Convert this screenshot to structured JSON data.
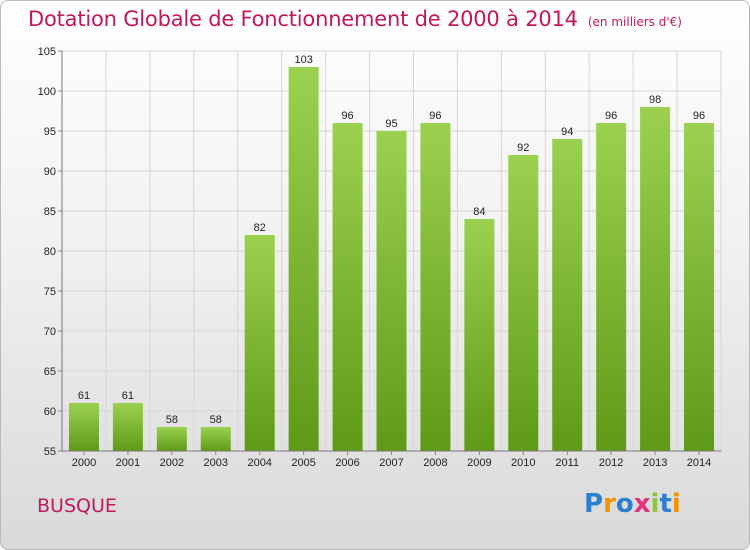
{
  "header": {
    "title": "Dotation Globale de Fonctionnement de 2000 à 2014",
    "unit": "(en milliers d'€)"
  },
  "footer": {
    "commune": "BUSQUE",
    "logo": "Proxiti",
    "logo_letters": [
      "P",
      "r",
      "o",
      "x",
      "i",
      "t",
      "i"
    ],
    "logo_colors": [
      "#2a7fd0",
      "#f39200",
      "#2a7fd0",
      "#e4327e",
      "#8cc63f",
      "#2a7fd0",
      "#f39200"
    ]
  },
  "colors": {
    "bar_top": "#9bd14f",
    "bar_bottom": "#5f9a17",
    "title": "#c2185b",
    "grid": "#d6d6d6"
  },
  "chart_data": {
    "type": "bar",
    "categories": [
      "2000",
      "2001",
      "2002",
      "2003",
      "2004",
      "2005",
      "2006",
      "2007",
      "2008",
      "2009",
      "2010",
      "2011",
      "2012",
      "2013",
      "2014"
    ],
    "values": [
      61,
      61,
      58,
      58,
      82,
      103,
      96,
      95,
      96,
      84,
      92,
      94,
      96,
      98,
      96
    ],
    "title": "Dotation Globale de Fonctionnement de 2000 à 2014",
    "xlabel": "",
    "ylabel": "",
    "ylim": [
      55,
      105
    ],
    "yticks": [
      55,
      60,
      65,
      70,
      75,
      80,
      85,
      90,
      95,
      100,
      105
    ],
    "grid": true,
    "data_labels": true
  }
}
